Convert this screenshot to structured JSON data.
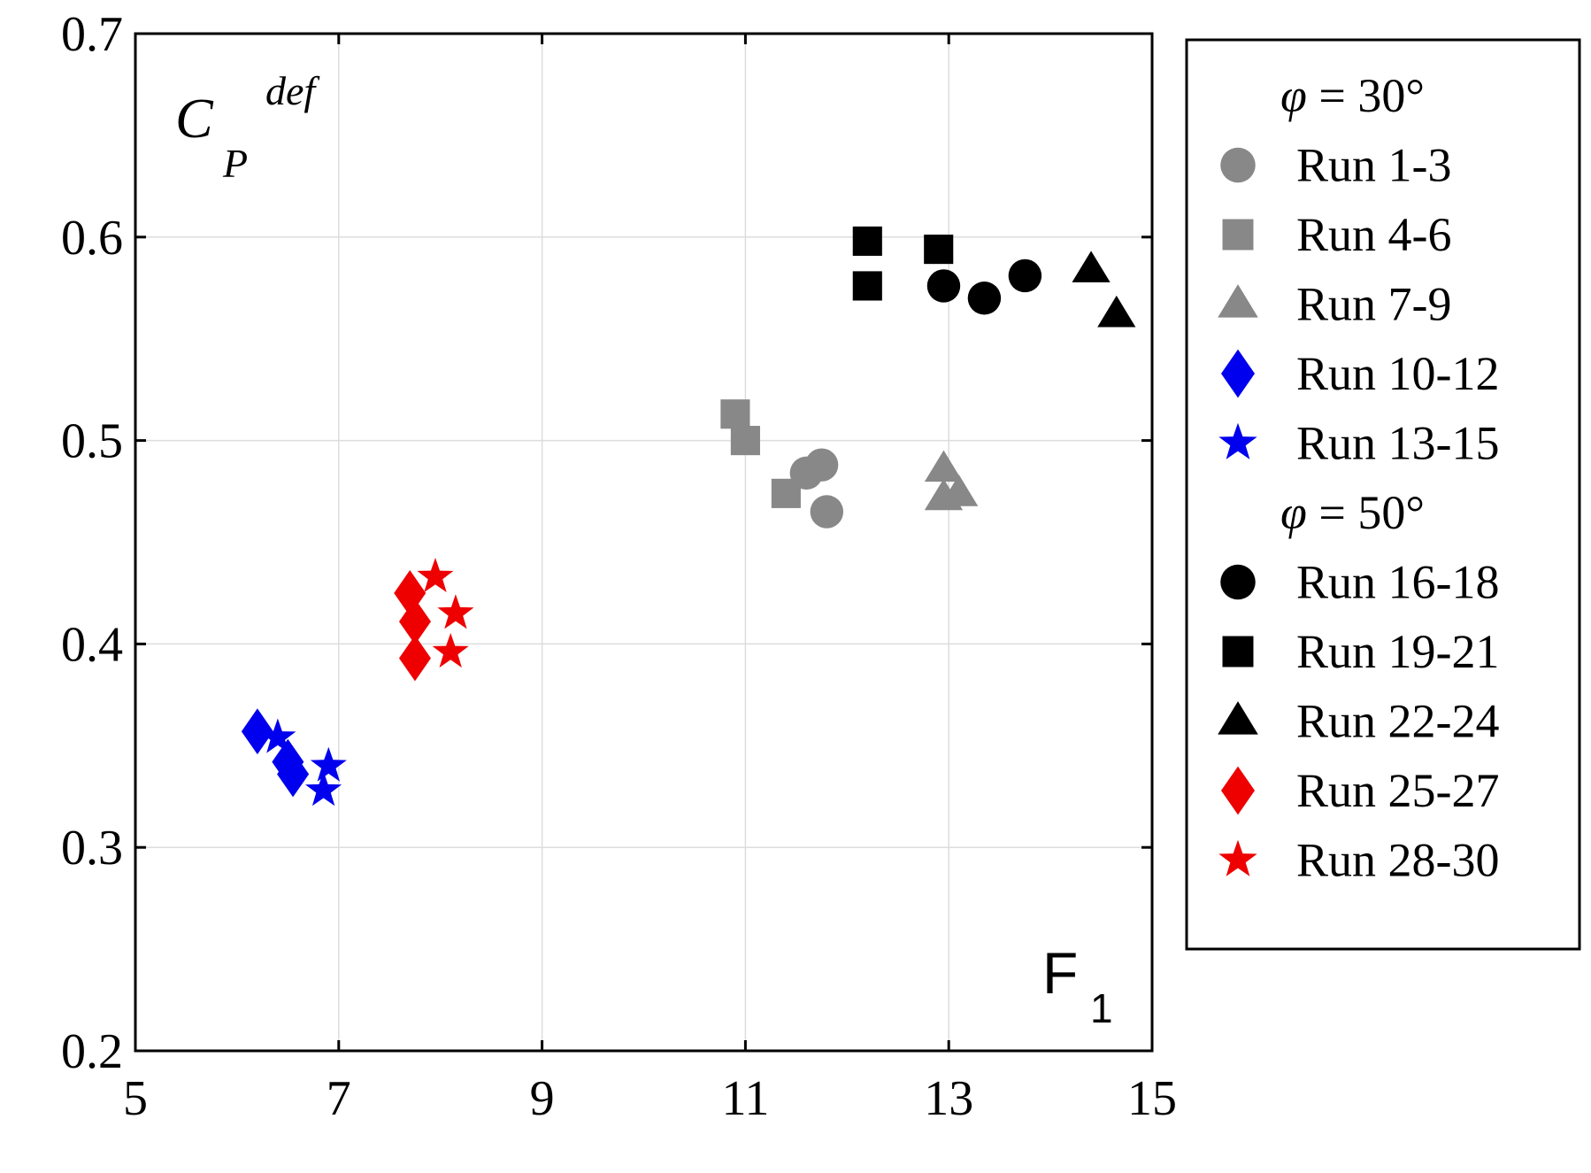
{
  "chart_data": {
    "type": "scatter",
    "xlabel": "F",
    "xlabel_subscript": "1",
    "ylabel": "C",
    "ylabel_subscript": "P",
    "ylabel_superscript": "def",
    "xlim": [
      5,
      15
    ],
    "ylim": [
      0.2,
      0.7
    ],
    "xticks": [
      "5",
      "7",
      "9",
      "11",
      "13",
      "15"
    ],
    "yticks": [
      "0.2",
      "0.3",
      "0.4",
      "0.5",
      "0.6",
      "0.7"
    ],
    "grid": true,
    "legend_position": "right",
    "legend_groups": [
      {
        "header_var": "φ",
        "header_rest": " = 30°",
        "series": [
          {
            "name": "Run 1-3",
            "marker": "circle",
            "color": "#888888",
            "points": [
              [
                11.6,
                0.484
              ],
              [
                11.75,
                0.488
              ],
              [
                11.8,
                0.465
              ]
            ]
          },
          {
            "name": "Run 4-6",
            "marker": "square",
            "color": "#888888",
            "points": [
              [
                10.9,
                0.513
              ],
              [
                11.0,
                0.5
              ],
              [
                11.4,
                0.474
              ]
            ]
          },
          {
            "name": "Run 7-9",
            "marker": "triangle",
            "color": "#888888",
            "points": [
              [
                12.95,
                0.486
              ],
              [
                12.95,
                0.472
              ],
              [
                13.1,
                0.474
              ]
            ]
          },
          {
            "name": "Run 10-12",
            "marker": "diamond",
            "color": "#0000ee",
            "points": [
              [
                6.2,
                0.357
              ],
              [
                6.5,
                0.342
              ],
              [
                6.55,
                0.336
              ]
            ]
          },
          {
            "name": "Run 13-15",
            "marker": "star",
            "color": "#0000ee",
            "points": [
              [
                6.4,
                0.354
              ],
              [
                6.9,
                0.34
              ],
              [
                6.85,
                0.328
              ]
            ]
          }
        ]
      },
      {
        "header_var": "φ",
        "header_rest": " = 50°",
        "series": [
          {
            "name": "Run 16-18",
            "marker": "circle",
            "color": "#000000",
            "points": [
              [
                12.95,
                0.576
              ],
              [
                13.35,
                0.57
              ],
              [
                13.75,
                0.581
              ]
            ]
          },
          {
            "name": "Run 19-21",
            "marker": "square",
            "color": "#000000",
            "points": [
              [
                12.2,
                0.598
              ],
              [
                12.2,
                0.576
              ],
              [
                12.9,
                0.594
              ]
            ]
          },
          {
            "name": "Run 22-24",
            "marker": "triangle",
            "color": "#000000",
            "points": [
              [
                14.4,
                0.584
              ],
              [
                14.65,
                0.562
              ]
            ]
          },
          {
            "name": "Run 25-27",
            "marker": "diamond",
            "color": "#ee0000",
            "points": [
              [
                7.7,
                0.425
              ],
              [
                7.75,
                0.411
              ],
              [
                7.75,
                0.393
              ]
            ]
          },
          {
            "name": "Run 28-30",
            "marker": "star",
            "color": "#ee0000",
            "points": [
              [
                7.95,
                0.433
              ],
              [
                8.15,
                0.415
              ],
              [
                8.1,
                0.396
              ]
            ]
          }
        ]
      }
    ]
  }
}
